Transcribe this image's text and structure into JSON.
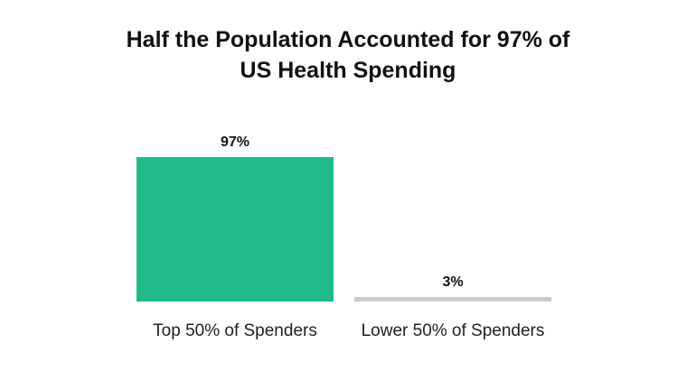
{
  "chart_data": {
    "type": "bar",
    "title": "Half the Population Accounted for 97% of US Health Spending",
    "title_lines": [
      "Half the Population Accounted for 97% of",
      "US Health Spending"
    ],
    "categories": [
      "Top 50% of Spenders",
      "Lower 50% of Spenders"
    ],
    "values": [
      97,
      3
    ],
    "value_labels": [
      "97%",
      "3%"
    ],
    "colors": [
      "#21b989",
      "#cccccc"
    ],
    "xlabel": "",
    "ylabel": "",
    "ylim": [
      0,
      100
    ],
    "grid": false,
    "legend": "none"
  }
}
